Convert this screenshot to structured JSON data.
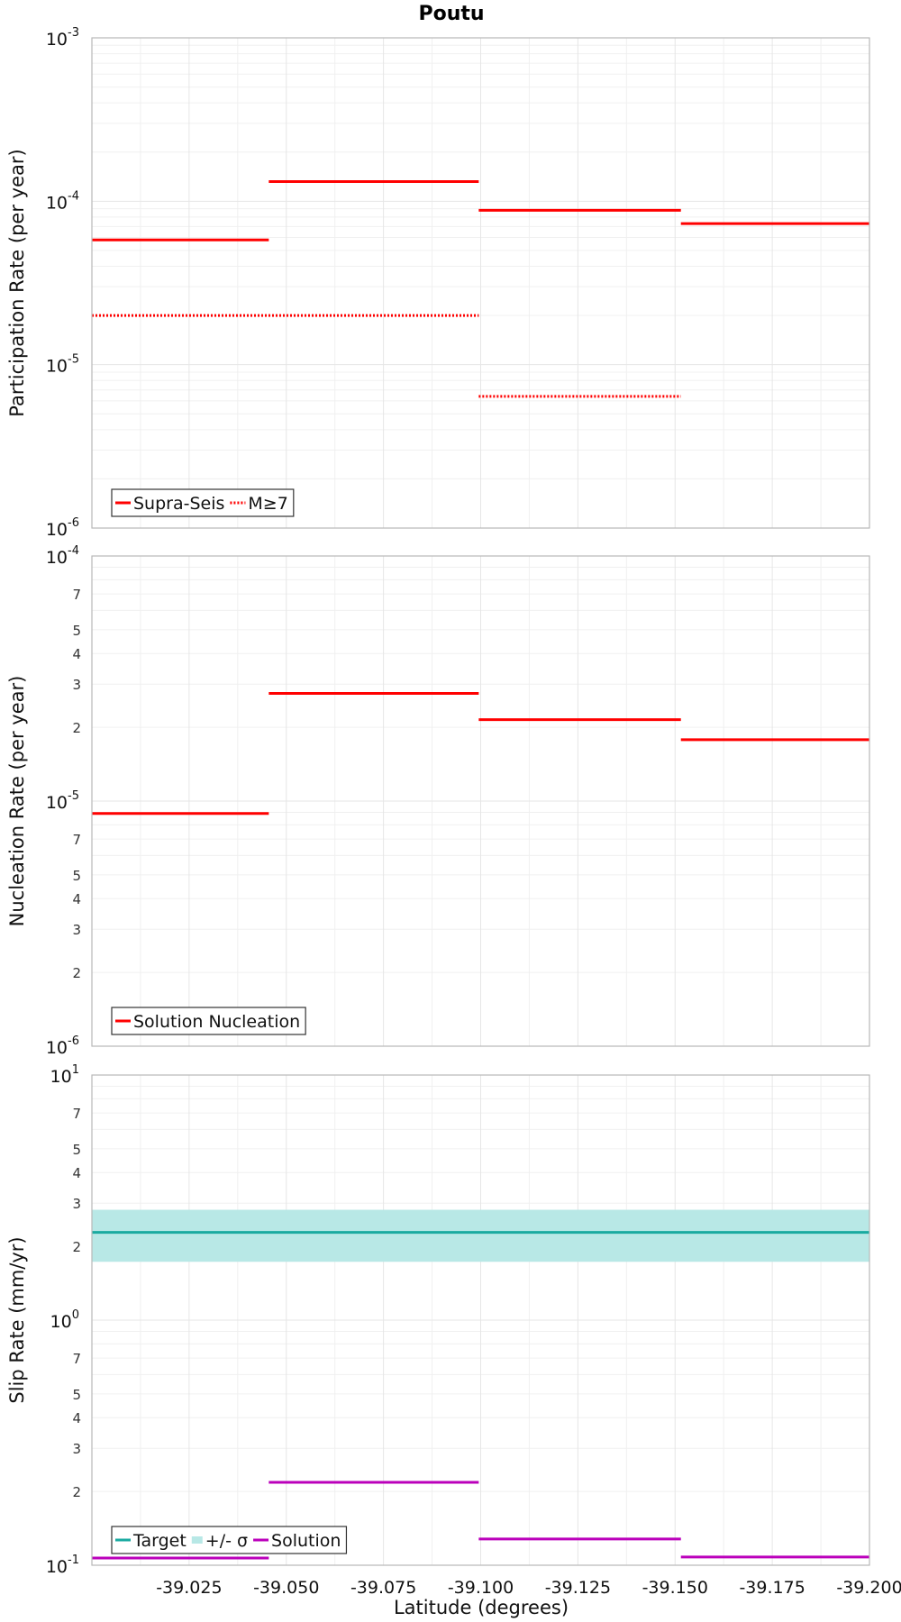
{
  "title": "Poutu",
  "xlabel": "Latitude (degrees)",
  "x_ticks": [
    "-39.025",
    "-39.050",
    "-39.075",
    "-39.100",
    "-39.125",
    "-39.150",
    "-39.175",
    "-39.200"
  ],
  "x_tick_values": [
    -39.025,
    -39.05,
    -39.075,
    -39.1,
    -39.125,
    -39.15,
    -39.175,
    -39.2
  ],
  "colors": {
    "red": "#ff0000",
    "target": "#1aaaa0",
    "band": "#b8e8e6",
    "solution": "#bb00bb"
  },
  "chart_data": [
    {
      "type": "line",
      "ylabel": "Participation Rate (per year)",
      "log_y": true,
      "ylim": [
        1e-06,
        0.001
      ],
      "xlim": [
        -39.0,
        -39.2
      ],
      "y_major_ticks": [
        {
          "base": "10",
          "exp": "-6",
          "value": 1e-06
        },
        {
          "base": "10",
          "exp": "-5",
          "value": 1e-05
        },
        {
          "base": "10",
          "exp": "-4",
          "value": 0.0001
        },
        {
          "base": "10",
          "exp": "-3",
          "value": 0.001
        }
      ],
      "y_minor_labels": [],
      "legend_position": "bottom-left",
      "series": [
        {
          "name": "Supra-Seis",
          "style": "solid",
          "segments": [
            {
              "x": [
                -39.0,
                -39.0455
              ],
              "y": 5.8e-05
            },
            {
              "x": [
                -39.0455,
                -39.0995
              ],
              "y": 0.000132
            },
            {
              "x": [
                -39.0995,
                -39.1515
              ],
              "y": 8.8e-05
            },
            {
              "x": [
                -39.1515,
                -39.2
              ],
              "y": 7.3e-05
            }
          ]
        },
        {
          "name": "M≥7",
          "style": "dotted",
          "segments": [
            {
              "x": [
                -39.0,
                -39.0995
              ],
              "y": 2e-05
            },
            {
              "x": [
                -39.0995,
                -39.1515
              ],
              "y": 6.4e-06
            }
          ]
        }
      ]
    },
    {
      "type": "line",
      "ylabel": "Nucleation Rate (per year)",
      "log_y": true,
      "ylim": [
        1e-06,
        0.0001
      ],
      "xlim": [
        -39.0,
        -39.2
      ],
      "y_major_ticks": [
        {
          "base": "10",
          "exp": "-6",
          "value": 1e-06
        },
        {
          "base": "10",
          "exp": "-5",
          "value": 1e-05
        },
        {
          "base": "10",
          "exp": "-4",
          "value": 0.0001
        }
      ],
      "y_minor_labels": [
        "2",
        "3",
        "4",
        "5",
        "7"
      ],
      "legend_position": "bottom-left",
      "series": [
        {
          "name": "Solution Nucleation",
          "style": "solid",
          "segments": [
            {
              "x": [
                -39.0,
                -39.0455
              ],
              "y": 8.9e-06
            },
            {
              "x": [
                -39.0455,
                -39.0995
              ],
              "y": 2.75e-05
            },
            {
              "x": [
                -39.0995,
                -39.1515
              ],
              "y": 2.15e-05
            },
            {
              "x": [
                -39.1515,
                -39.2
              ],
              "y": 1.78e-05
            }
          ]
        }
      ]
    },
    {
      "type": "line",
      "ylabel": "Slip Rate (mm/yr)",
      "log_y": true,
      "ylim": [
        0.1,
        10
      ],
      "xlim": [
        -39.0,
        -39.2
      ],
      "y_major_ticks": [
        {
          "base": "10",
          "exp": "-1",
          "value": 0.1
        },
        {
          "base": "10",
          "exp": "0",
          "value": 1
        },
        {
          "base": "10",
          "exp": "1",
          "value": 10
        }
      ],
      "y_minor_labels": [
        "2",
        "3",
        "4",
        "5",
        "7"
      ],
      "legend_position": "bottom-left",
      "band": {
        "name": "+/- σ",
        "lower": 1.73,
        "upper": 2.82
      },
      "series": [
        {
          "name": "Target",
          "style": "solid",
          "segments": [
            {
              "x": [
                -39.0,
                -39.2
              ],
              "y": 2.28
            }
          ]
        },
        {
          "name": "Solution",
          "style": "solid",
          "segments": [
            {
              "x": [
                -39.0,
                -39.0455
              ],
              "y": 0.107
            },
            {
              "x": [
                -39.0455,
                -39.0995
              ],
              "y": 0.218
            },
            {
              "x": [
                -39.0995,
                -39.1515
              ],
              "y": 0.128
            },
            {
              "x": [
                -39.1515,
                -39.2
              ],
              "y": 0.108
            }
          ]
        }
      ]
    }
  ]
}
